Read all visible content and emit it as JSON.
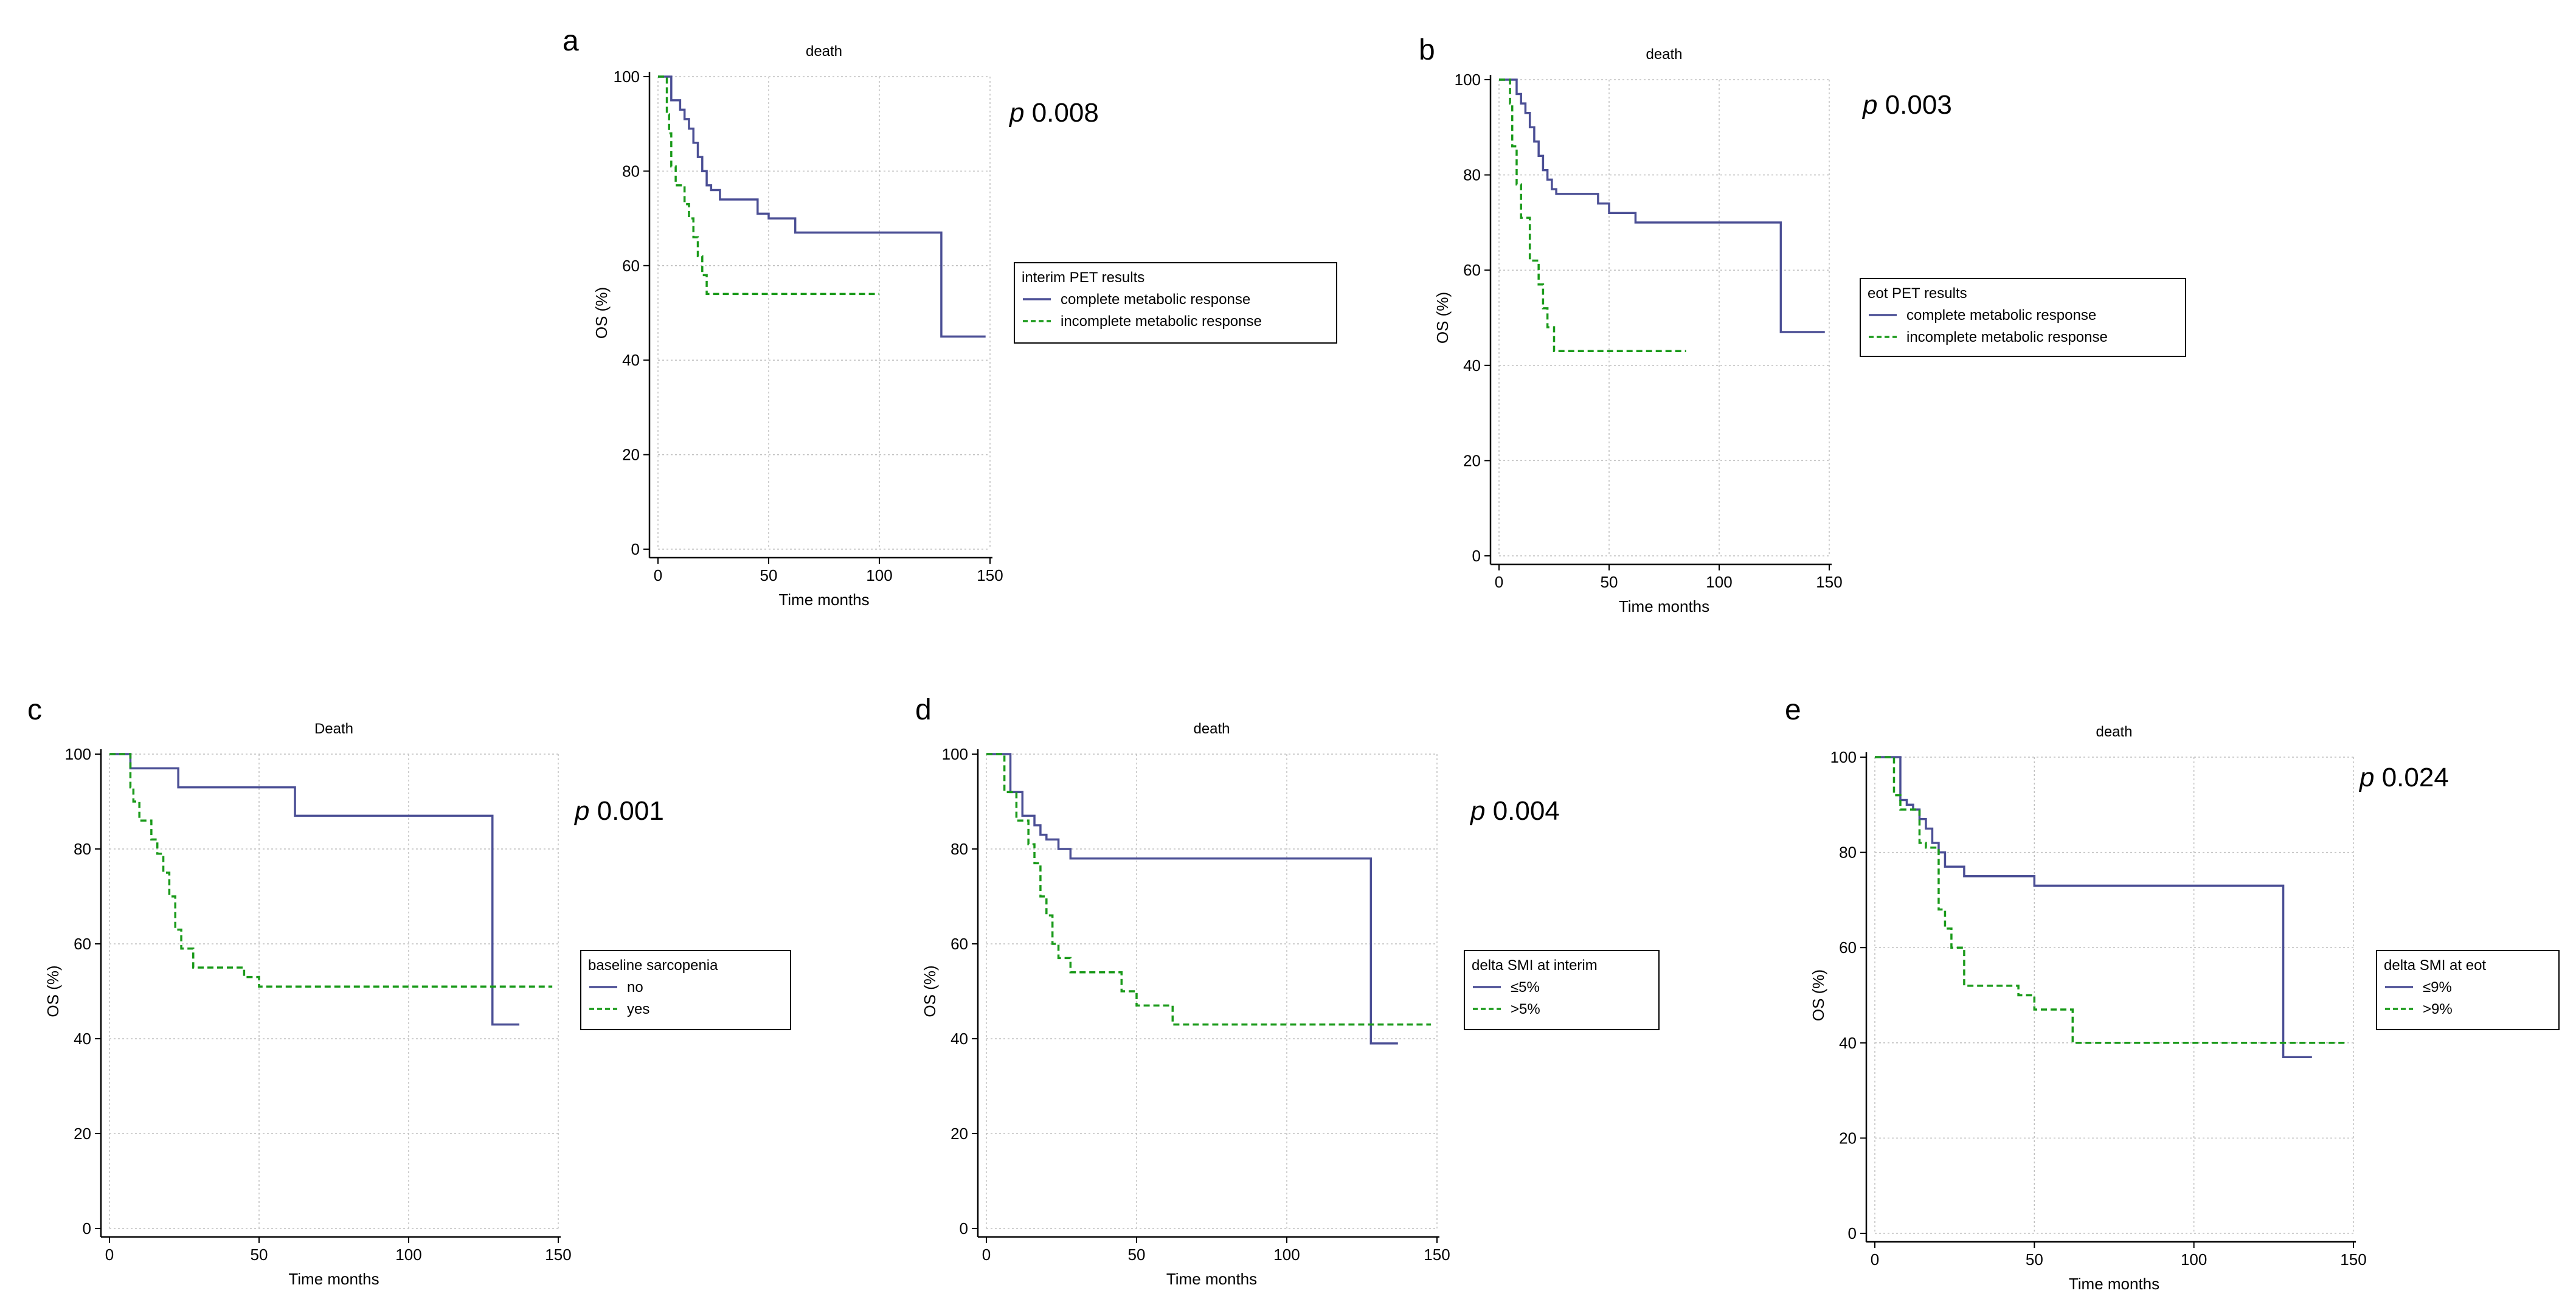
{
  "colors": {
    "series_1": "#4b4f95",
    "series_2": "#1a9a1a",
    "axis": "#000000",
    "grid": "#c0c0c0"
  },
  "chart_data": [
    {
      "panel": "a",
      "type": "line",
      "title": "death",
      "xlabel": "Time months",
      "ylabel": "OS (%)",
      "xlim": [
        0,
        150
      ],
      "ylim": [
        0,
        100
      ],
      "xticks": [
        0,
        50,
        100,
        150
      ],
      "yticks": [
        0,
        20,
        40,
        60,
        80,
        100
      ],
      "grid": true,
      "p_value": "0.008",
      "legend_title": "interim PET results",
      "series": [
        {
          "name": "complete metabolic response",
          "style": "solid",
          "x": [
            0,
            5,
            6,
            8,
            10,
            12,
            14,
            16,
            18,
            20,
            22,
            24,
            28,
            45,
            50,
            62,
            128,
            148
          ],
          "y": [
            100,
            100,
            95,
            95,
            93,
            91,
            89,
            86,
            83,
            80,
            77,
            76,
            74,
            71,
            70,
            67,
            45,
            45
          ]
        },
        {
          "name": "incomplete metabolic response",
          "style": "dashed",
          "x": [
            0,
            3,
            4,
            5,
            6,
            8,
            10,
            12,
            14,
            16,
            18,
            20,
            22,
            100
          ],
          "y": [
            100,
            100,
            92,
            88,
            81,
            77,
            77,
            73,
            70,
            66,
            62,
            58,
            54,
            54
          ]
        }
      ]
    },
    {
      "panel": "b",
      "type": "line",
      "title": "death",
      "xlabel": "Time months",
      "ylabel": "OS (%)",
      "xlim": [
        0,
        150
      ],
      "ylim": [
        0,
        100
      ],
      "xticks": [
        0,
        50,
        100,
        150
      ],
      "yticks": [
        0,
        20,
        40,
        60,
        80,
        100
      ],
      "grid": true,
      "p_value": "0.003",
      "legend_title": "eot PET results",
      "series": [
        {
          "name": "complete metabolic response",
          "style": "solid",
          "x": [
            0,
            6,
            8,
            10,
            12,
            14,
            16,
            18,
            20,
            22,
            24,
            26,
            28,
            45,
            50,
            62,
            128,
            148
          ],
          "y": [
            100,
            100,
            97,
            95,
            93,
            90,
            87,
            84,
            81,
            79,
            77,
            76,
            76,
            74,
            72,
            70,
            47,
            47
          ]
        },
        {
          "name": "incomplete metabolic response",
          "style": "dashed",
          "x": [
            0,
            4,
            5,
            6,
            8,
            10,
            14,
            18,
            20,
            22,
            25,
            28,
            85
          ],
          "y": [
            100,
            100,
            95,
            86,
            78,
            71,
            62,
            57,
            52,
            48,
            43,
            43,
            43
          ]
        }
      ]
    },
    {
      "panel": "c",
      "type": "line",
      "title": "Death",
      "xlabel": "Time months",
      "ylabel": "OS (%)",
      "xlim": [
        0,
        150
      ],
      "ylim": [
        0,
        100
      ],
      "xticks": [
        0,
        50,
        100,
        150
      ],
      "yticks": [
        0,
        20,
        40,
        60,
        80,
        100
      ],
      "grid": true,
      "p_value": "0.001",
      "legend_title": "baseline sarcopenia",
      "series": [
        {
          "name": "no",
          "style": "solid",
          "x": [
            0,
            7,
            23,
            62,
            128,
            137
          ],
          "y": [
            100,
            97,
            93,
            87,
            43,
            43
          ]
        },
        {
          "name": "yes",
          "style": "dashed",
          "x": [
            0,
            6,
            7,
            8,
            10,
            14,
            16,
            18,
            20,
            22,
            24,
            28,
            45,
            50,
            148
          ],
          "y": [
            100,
            100,
            93,
            90,
            86,
            82,
            79,
            75,
            70,
            63,
            59,
            55,
            53,
            51,
            51
          ]
        }
      ]
    },
    {
      "panel": "d",
      "type": "line",
      "title": "death",
      "xlabel": "Time months",
      "ylabel": "OS (%)",
      "xlim": [
        0,
        150
      ],
      "ylim": [
        0,
        100
      ],
      "xticks": [
        0,
        50,
        100,
        150
      ],
      "yticks": [
        0,
        20,
        40,
        60,
        80,
        100
      ],
      "grid": true,
      "p_value": "0.004",
      "legend_title": "delta SMI at interim",
      "series": [
        {
          "name": "≤5%",
          "style": "solid",
          "x": [
            0,
            6,
            8,
            12,
            16,
            18,
            20,
            24,
            28,
            128,
            137
          ],
          "y": [
            100,
            100,
            92,
            87,
            85,
            83,
            82,
            80,
            78,
            39,
            39
          ]
        },
        {
          "name": ">5%",
          "style": "dashed",
          "x": [
            0,
            5,
            6,
            10,
            14,
            16,
            18,
            20,
            22,
            24,
            28,
            45,
            50,
            62,
            148
          ],
          "y": [
            100,
            100,
            92,
            86,
            81,
            77,
            70,
            66,
            60,
            57,
            54,
            50,
            47,
            43,
            43
          ]
        }
      ]
    },
    {
      "panel": "e",
      "type": "line",
      "title": "death",
      "xlabel": "Time months",
      "ylabel": "OS (%)",
      "xlim": [
        0,
        150
      ],
      "ylim": [
        0,
        100
      ],
      "xticks": [
        0,
        50,
        100,
        150
      ],
      "yticks": [
        0,
        20,
        40,
        60,
        80,
        100
      ],
      "grid": true,
      "p_value": "0.024",
      "legend_title": "delta SMI at eot",
      "series": [
        {
          "name": "≤9%",
          "style": "solid",
          "x": [
            0,
            6,
            8,
            10,
            12,
            14,
            16,
            18,
            20,
            22,
            28,
            50,
            128,
            137
          ],
          "y": [
            100,
            100,
            91,
            90,
            89,
            87,
            85,
            82,
            80,
            77,
            75,
            73,
            37,
            37
          ]
        },
        {
          "name": ">9%",
          "style": "dashed",
          "x": [
            0,
            5,
            6,
            8,
            14,
            16,
            20,
            22,
            24,
            28,
            45,
            50,
            62,
            148
          ],
          "y": [
            100,
            100,
            92,
            89,
            82,
            81,
            68,
            64,
            60,
            52,
            50,
            47,
            40,
            40
          ]
        }
      ]
    }
  ]
}
